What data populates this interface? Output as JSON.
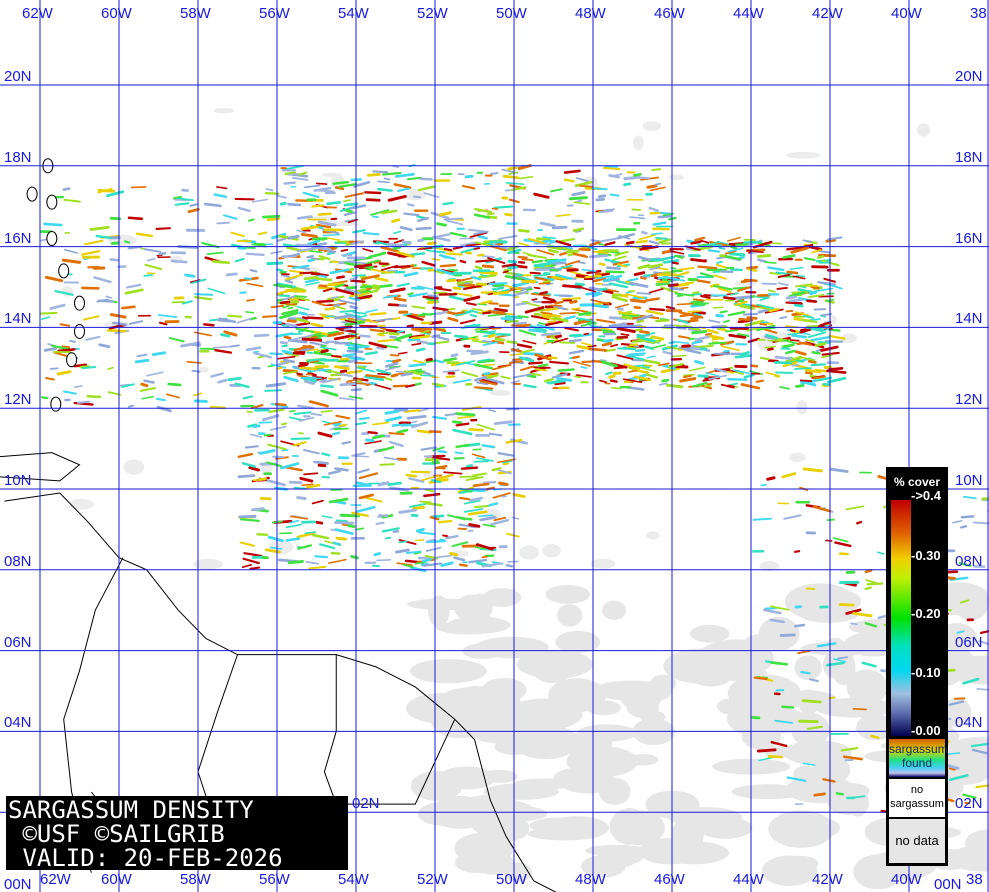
{
  "map": {
    "lon_labels": [
      "62W",
      "60W",
      "58W",
      "56W",
      "54W",
      "52W",
      "50W",
      "48W",
      "46W",
      "44W",
      "42W",
      "40W",
      "38"
    ],
    "lat_labels": [
      "20N",
      "18N",
      "16N",
      "14N",
      "12N",
      "10N",
      "08N",
      "06N",
      "04N",
      "02N",
      "00N"
    ],
    "grid_color": "#1a1adc",
    "land_outline_color": "#000000",
    "no_data_color": "#e6e6e6"
  },
  "title": {
    "line1": "SARGASSUM DENSITY",
    "line2": " ©USF ©SAILGRIB",
    "line3": " VALID: 20-FEB-2026"
  },
  "legend": {
    "header": "% cover",
    "ticks": [
      "->0.4",
      "-0.30",
      "-0.20",
      "-0.10",
      "-0.00"
    ],
    "found_line1": "sargassum",
    "found_line2": "found",
    "no_sargassum_line1": "no",
    "no_sargassum_line2": "sargassum",
    "no_data": "no data"
  }
}
